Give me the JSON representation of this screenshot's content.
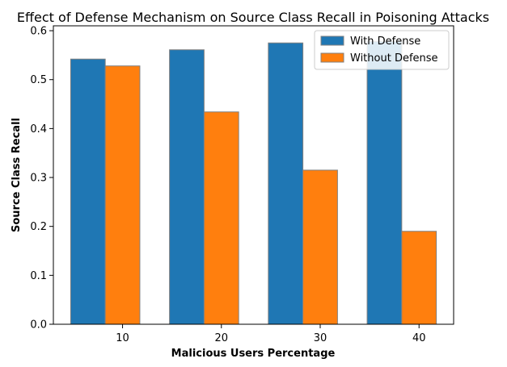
{
  "chart_data": {
    "type": "bar",
    "title": "Effect of Defense Mechanism on Source Class Recall in Poisoning Attacks",
    "xlabel": "Malicious Users Percentage",
    "ylabel": "Source Class Recall",
    "categories": [
      "10",
      "20",
      "30",
      "40"
    ],
    "series": [
      {
        "name": "With Defense",
        "values": [
          0.542,
          0.561,
          0.575,
          0.578
        ],
        "color": "#1f77b4"
      },
      {
        "name": "Without Defense",
        "values": [
          0.528,
          0.434,
          0.315,
          0.19
        ],
        "color": "#ff7f0e"
      }
    ],
    "ylim": [
      0,
      0.61
    ],
    "yticks": [
      "0.0",
      "0.1",
      "0.2",
      "0.3",
      "0.4",
      "0.5",
      "0.6"
    ],
    "grid": false,
    "legend_position": "top-right",
    "bar_edge_color": "#808080"
  }
}
